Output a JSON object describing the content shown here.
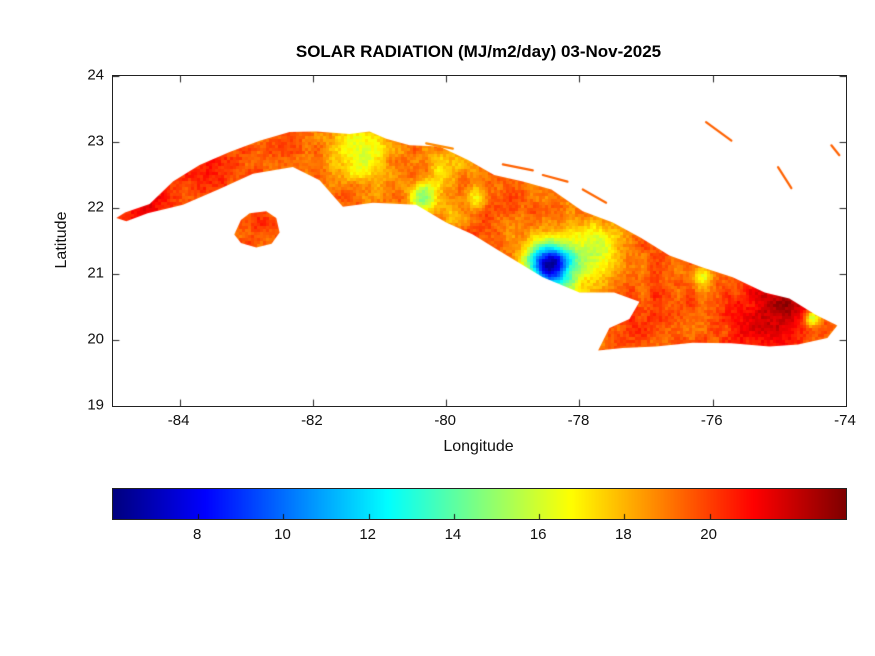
{
  "chart_data": {
    "type": "heatmap",
    "title": "SOLAR RADIATION (MJ/m2/day) 03-Nov-2025",
    "xlabel": "Longitude",
    "ylabel": "Latitude",
    "region": "Cuba",
    "units": "MJ/m2/day",
    "date": "03-Nov-2025",
    "xlim": [
      -85,
      -74
    ],
    "ylim": [
      19,
      24
    ],
    "xticks": [
      -84,
      -82,
      -80,
      -78,
      -76,
      -74
    ],
    "yticks": [
      19,
      20,
      21,
      22,
      23,
      24
    ],
    "grid": false,
    "colormap": "jet",
    "colorbar": {
      "orientation": "horizontal",
      "position": "bottom",
      "cmin": 6.0,
      "cmax": 23.2,
      "ticks": [
        8,
        10,
        12,
        14,
        16,
        18,
        20
      ]
    },
    "base_value": 19.4,
    "features": [
      {
        "lon": -78.45,
        "lat": 21.15,
        "s": 0.3,
        "d": -9.5,
        "label": "deep-blue-low-core"
      },
      {
        "lon": -78.3,
        "lat": 21.05,
        "s": 0.6,
        "d": -3.6,
        "label": "cyan-halo"
      },
      {
        "lon": -77.7,
        "lat": 21.45,
        "s": 0.35,
        "d": -3.0,
        "label": "green-strip-northeast"
      },
      {
        "lon": -77.95,
        "lat": 19.95,
        "s": 0.16,
        "d": -6.5,
        "label": "south-coast-cyan-spot"
      },
      {
        "lon": -80.35,
        "lat": 22.15,
        "s": 0.22,
        "d": -5.0,
        "label": "central-green-patch"
      },
      {
        "lon": -81.3,
        "lat": 22.82,
        "s": 0.45,
        "d": -3.2,
        "label": "west-central-yellow-band"
      },
      {
        "lon": -80.0,
        "lat": 22.62,
        "s": 0.32,
        "d": -2.0,
        "label": "orange-yellow-zone"
      },
      {
        "lon": -79.55,
        "lat": 22.15,
        "s": 0.16,
        "d": -3.0,
        "label": "small-green-speck"
      },
      {
        "lon": -74.5,
        "lat": 20.33,
        "s": 0.12,
        "d": -4.5,
        "label": "east-tip-green-spot"
      },
      {
        "lon": -76.15,
        "lat": 20.95,
        "s": 0.16,
        "d": -3.2,
        "label": "east-green-speck"
      },
      {
        "lon": -79.9,
        "lat": 21.9,
        "s": 0.2,
        "d": -1.5,
        "label": "trinidad-orange"
      },
      {
        "lon": -75.25,
        "lat": 20.35,
        "s": 0.55,
        "d": 2.0,
        "label": "east-dark-red-high"
      },
      {
        "lon": -74.85,
        "lat": 20.55,
        "s": 0.35,
        "d": 1.8,
        "label": "far-east-dark-red"
      },
      {
        "lon": -84.55,
        "lat": 21.95,
        "s": 0.45,
        "d": 1.6,
        "label": "west-tip-dark-red"
      },
      {
        "lon": -83.6,
        "lat": 22.5,
        "s": 0.5,
        "d": 1.2,
        "label": "west-arm-red"
      },
      {
        "lon": -82.85,
        "lat": 21.68,
        "s": 0.3,
        "d": 0.8,
        "label": "isla-juventud-red"
      },
      {
        "lon": -76.9,
        "lat": 20.3,
        "s": 0.4,
        "d": 1.0,
        "label": "southeast-red"
      }
    ],
    "polygons": {
      "main_island": [
        [
          -84.95,
          21.85
        ],
        [
          -84.82,
          21.93
        ],
        [
          -84.45,
          22.06
        ],
        [
          -84.1,
          22.4
        ],
        [
          -83.7,
          22.65
        ],
        [
          -83.25,
          22.85
        ],
        [
          -82.8,
          23.02
        ],
        [
          -82.35,
          23.15
        ],
        [
          -81.95,
          23.16
        ],
        [
          -81.45,
          23.12
        ],
        [
          -81.15,
          23.16
        ],
        [
          -80.9,
          23.05
        ],
        [
          -80.55,
          22.95
        ],
        [
          -80.1,
          22.93
        ],
        [
          -79.68,
          22.73
        ],
        [
          -79.28,
          22.5
        ],
        [
          -78.85,
          22.4
        ],
        [
          -78.42,
          22.28
        ],
        [
          -77.95,
          21.95
        ],
        [
          -77.5,
          21.78
        ],
        [
          -77.08,
          21.55
        ],
        [
          -76.65,
          21.28
        ],
        [
          -76.15,
          21.1
        ],
        [
          -75.7,
          20.95
        ],
        [
          -75.22,
          20.72
        ],
        [
          -74.85,
          20.63
        ],
        [
          -74.45,
          20.38
        ],
        [
          -74.13,
          20.22
        ],
        [
          -74.28,
          20.03
        ],
        [
          -74.72,
          19.93
        ],
        [
          -75.15,
          19.9
        ],
        [
          -75.72,
          19.95
        ],
        [
          -76.3,
          19.96
        ],
        [
          -76.85,
          19.9
        ],
        [
          -77.35,
          19.88
        ],
        [
          -77.72,
          19.84
        ],
        [
          -77.55,
          20.18
        ],
        [
          -77.25,
          20.32
        ],
        [
          -77.1,
          20.58
        ],
        [
          -77.48,
          20.72
        ],
        [
          -78.0,
          20.72
        ],
        [
          -78.55,
          20.95
        ],
        [
          -79.2,
          21.35
        ],
        [
          -79.6,
          21.6
        ],
        [
          -80.0,
          21.78
        ],
        [
          -80.45,
          22.05
        ],
        [
          -81.1,
          22.08
        ],
        [
          -81.55,
          22.02
        ],
        [
          -81.9,
          22.42
        ],
        [
          -82.3,
          22.62
        ],
        [
          -82.9,
          22.52
        ],
        [
          -83.42,
          22.28
        ],
        [
          -83.95,
          22.05
        ],
        [
          -84.48,
          21.92
        ],
        [
          -84.8,
          21.8
        ]
      ],
      "isla_juventud": [
        [
          -83.18,
          21.6
        ],
        [
          -83.08,
          21.82
        ],
        [
          -82.95,
          21.92
        ],
        [
          -82.7,
          21.95
        ],
        [
          -82.55,
          21.85
        ],
        [
          -82.5,
          21.63
        ],
        [
          -82.62,
          21.46
        ],
        [
          -82.85,
          21.4
        ],
        [
          -83.08,
          21.47
        ]
      ],
      "cays": [
        [
          [
            -80.3,
            22.98
          ],
          [
            -79.9,
            22.9
          ]
        ],
        [
          [
            -79.15,
            22.66
          ],
          [
            -78.7,
            22.57
          ]
        ],
        [
          [
            -78.55,
            22.5
          ],
          [
            -78.18,
            22.4
          ]
        ],
        [
          [
            -77.95,
            22.28
          ],
          [
            -77.6,
            22.08
          ]
        ],
        [
          [
            -76.1,
            23.3
          ],
          [
            -75.72,
            23.02
          ]
        ],
        [
          [
            -75.02,
            22.62
          ],
          [
            -74.82,
            22.3
          ]
        ],
        [
          [
            -74.22,
            22.95
          ],
          [
            -74.1,
            22.8
          ]
        ]
      ]
    }
  }
}
